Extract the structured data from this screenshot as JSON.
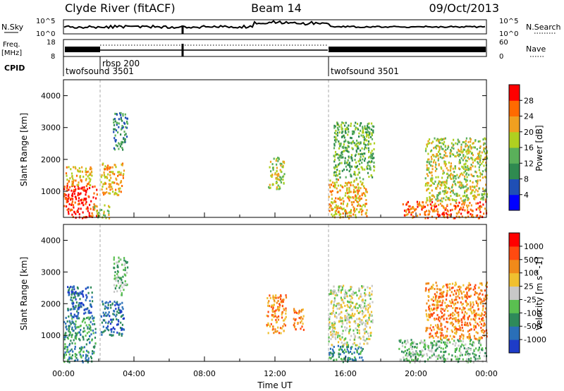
{
  "header": {
    "station": "Clyde River (fitACF)",
    "beam": "Beam 14",
    "date": "09/Oct/2013"
  },
  "summary_panels": {
    "nsky_label": "N.Sky",
    "nsearch_label": "N.Search",
    "noise_ticks": [
      "10^5",
      "10^0"
    ],
    "freq_label": "Freq.",
    "freq_unit": "[MHz]",
    "freq_ticks": [
      "18",
      "8"
    ],
    "nave_label": "Nave",
    "nave_ticks": [
      "60",
      "0"
    ],
    "cpid_label": "CPID",
    "cpid_entries": [
      {
        "name": "twofsound 3501",
        "start_hour": 0
      },
      {
        "name": "rbsp 200",
        "start_hour": 2
      },
      {
        "name": "twofsound 3501",
        "start_hour": 15
      }
    ]
  },
  "chart_data": [
    {
      "type": "heatmap",
      "name": "power",
      "ylabel": "Slant Range [km]",
      "xlim": [
        0,
        24
      ],
      "ylim": [
        180,
        4500
      ],
      "yticks": [
        "1000",
        "2000",
        "3000",
        "4000"
      ],
      "colorbar_label": "Power [dB]",
      "colorbar_ticks": [
        "4",
        "8",
        "12",
        "16",
        "20",
        "24",
        "28"
      ],
      "colorbar_colors": [
        "#0000ff",
        "#1f4fb5",
        "#2f8a50",
        "#5ab05a",
        "#b0d020",
        "#f0a020",
        "#ff6a00",
        "#ff0000"
      ],
      "regions": [
        {
          "t0": 0.0,
          "t1": 1.9,
          "r0": 180,
          "r1": 1200,
          "level": 7
        },
        {
          "t0": 0.1,
          "t1": 1.6,
          "r0": 1200,
          "r1": 1800,
          "level": 5
        },
        {
          "t0": 1.6,
          "t1": 2.6,
          "r0": 180,
          "r1": 600,
          "level": 4
        },
        {
          "t0": 2.1,
          "t1": 3.4,
          "r0": 900,
          "r1": 1900,
          "level": 5
        },
        {
          "t0": 2.8,
          "t1": 3.6,
          "r0": 2300,
          "r1": 3500,
          "level": 2
        },
        {
          "t0": 11.6,
          "t1": 12.5,
          "r0": 1100,
          "r1": 2100,
          "level": 4
        },
        {
          "t0": 15.0,
          "t1": 17.2,
          "r0": 180,
          "r1": 1400,
          "level": 5
        },
        {
          "t0": 15.3,
          "t1": 17.6,
          "r0": 1400,
          "r1": 3200,
          "level": 3
        },
        {
          "t0": 19.2,
          "t1": 24.0,
          "r0": 180,
          "r1": 700,
          "level": 6
        },
        {
          "t0": 20.5,
          "t1": 24.0,
          "r0": 700,
          "r1": 2700,
          "level": 4
        }
      ]
    },
    {
      "type": "heatmap",
      "name": "velocity",
      "ylabel": "Slant Range [km]",
      "xlabel": "Time UT",
      "xlim": [
        0,
        24
      ],
      "ylim": [
        180,
        4500
      ],
      "xticks": [
        "00:00",
        "04:00",
        "08:00",
        "12:00",
        "16:00",
        "20:00",
        "00:00"
      ],
      "yticks": [
        "1000",
        "2000",
        "3000",
        "4000"
      ],
      "colorbar_label": "Velocity [m s^-1]",
      "colorbar_ticks": [
        "1000",
        "500",
        "100",
        "25",
        "-25",
        "-100",
        "-500",
        "-1000"
      ],
      "colorbar_colors": [
        "#1e3cc8",
        "#2a6fb8",
        "#2e8a5a",
        "#5ac050",
        "#c8c8c8",
        "#f0c030",
        "#f08a1a",
        "#ff4a10",
        "#ff0000"
      ],
      "regions": [
        {
          "t0": 0.0,
          "t1": 1.8,
          "r0": 180,
          "r1": 1600,
          "level": 2
        },
        {
          "t0": 0.2,
          "t1": 1.6,
          "r0": 1600,
          "r1": 2600,
          "level": 1
        },
        {
          "t0": 2.1,
          "t1": 3.4,
          "r0": 1000,
          "r1": 2100,
          "level": 1
        },
        {
          "t0": 2.8,
          "t1": 3.6,
          "r0": 2300,
          "r1": 3500,
          "level": 3
        },
        {
          "t0": 11.5,
          "t1": 12.6,
          "r0": 1100,
          "r1": 2300,
          "level": 6
        },
        {
          "t0": 13.0,
          "t1": 13.6,
          "r0": 1200,
          "r1": 1900,
          "level": 6
        },
        {
          "t0": 15.0,
          "t1": 17.5,
          "r0": 700,
          "r1": 2600,
          "level": 4
        },
        {
          "t0": 15.0,
          "t1": 17.0,
          "r0": 180,
          "r1": 700,
          "level": 2
        },
        {
          "t0": 19.0,
          "t1": 24.0,
          "r0": 180,
          "r1": 900,
          "level": 3
        },
        {
          "t0": 20.5,
          "t1": 24.0,
          "r0": 900,
          "r1": 2700,
          "level": 6
        }
      ]
    }
  ]
}
